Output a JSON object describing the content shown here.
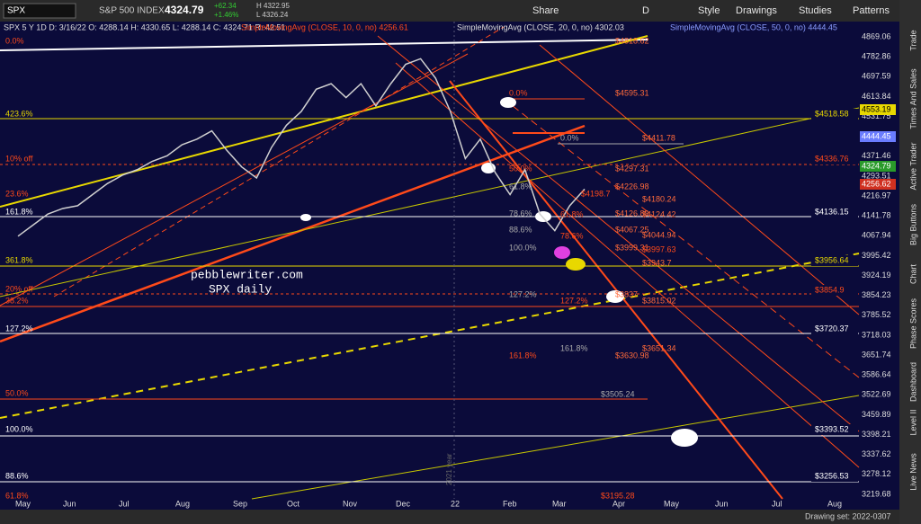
{
  "toolbar": {
    "symbol": "SPX",
    "name": "S&P 500 INDEX",
    "last": "4324.79",
    "change": "+62.34",
    "change_pct": "+1.46%",
    "bid": "H 4322.95",
    "ask": "L 4326.24",
    "buttons": [
      "Share",
      "D",
      "Style",
      "Drawings",
      "Studies",
      "Patterns"
    ]
  },
  "legend": {
    "ohlc": "SPX 5 Y 1D  D: 3/16/22  O: 4288.14  H: 4330.65  L: 4288.14  C: 4324.71  R: 42.51",
    "sma10": "SimpleMovingAvg (CLOSE, 10, 0, no) 4256.61",
    "sma20": "SimpleMovingAvg (CLOSE, 20, 0, no) 4302.03",
    "sma50": "SimpleMovingAvg (CLOSE, 50, 0, no) 4444.45"
  },
  "price_axis": {
    "labels": [
      "4869.06",
      "4782.86",
      "4697.59",
      "4613.84",
      "4531.75",
      "4451.27",
      "4371.46",
      "4293.51",
      "4216.97",
      "4141.78",
      "4067.94",
      "3995.42",
      "3924.19",
      "3854.23",
      "3785.52",
      "3718.03",
      "3651.74",
      "3586.64",
      "3522.69",
      "3459.89",
      "3398.21",
      "3337.62",
      "3278.12",
      "3219.68"
    ],
    "highlights": [
      "4553.19",
      "4444.45",
      "4324.79",
      "4256.62"
    ]
  },
  "time_axis": {
    "months": [
      "May",
      "Jun",
      "Jul",
      "Aug",
      "Sep",
      "Oct",
      "Nov",
      "Dec",
      "22",
      "Feb",
      "Mar",
      "Apr",
      "May",
      "Jun",
      "Jul",
      "Aug"
    ],
    "year_marker": "2021 year"
  },
  "levels_right": [
    "$4518.58",
    "$4336.76",
    "$4136.15",
    "$3956.64",
    "$3854.9",
    "$3720.37",
    "$3393.52",
    "$3256.53"
  ],
  "levels_left": [
    "0.0%",
    "423.6%",
    "10% off",
    "23.6%",
    "161.8%",
    "361.8%",
    "20% off",
    "38.2%",
    "127.2%",
    "50.0%",
    "100.0%",
    "88.6%",
    "61.8%"
  ],
  "fib_labels": [
    "0.0%",
    "$4595.31",
    "0.0%",
    "$4411.78",
    "50.0%",
    "$4297.31",
    "61.8%",
    "$4226.98",
    "$4198.7",
    "$4180.24",
    "78.6%",
    "$4126.89",
    "61.8%",
    "$4124.42",
    "88.6%",
    "$4067.25",
    "78.6%",
    "$4044.94",
    "100.0%",
    "$3999.31",
    "$3997.63",
    "$3943.7",
    "127.2%",
    "$3837",
    "127.2%",
    "$3815.02",
    "161.8%",
    "$3651.34",
    "161.8%",
    "$3630.98",
    "$3505.24",
    "$4818.62",
    "$3195.28"
  ],
  "watermark": [
    "pebblewriter.com",
    "SPX daily"
  ],
  "sidebar": [
    "Trade",
    "Times And Sales",
    "Active Trader",
    "Big Buttons",
    "Chart",
    "Phase Scores",
    "Dashboard",
    "Level II",
    "Live News"
  ],
  "footer": "Drawing set: 2022-0307",
  "chart_data": {
    "type": "line",
    "color": "#d0d0d0",
    "ylim": [
      3203,
      4924
    ],
    "values": [
      4150,
      4190,
      4230,
      4250,
      4260,
      4300,
      4340,
      4370,
      4390,
      4420,
      4440,
      4480,
      4500,
      4530,
      4460,
      4400,
      4360,
      4470,
      4550,
      4600,
      4680,
      4700,
      4650,
      4700,
      4620,
      4700,
      4770,
      4790,
      4720,
      4600,
      4430,
      4500,
      4380,
      4300,
      4390,
      4230,
      4170,
      4260,
      4320
    ]
  }
}
